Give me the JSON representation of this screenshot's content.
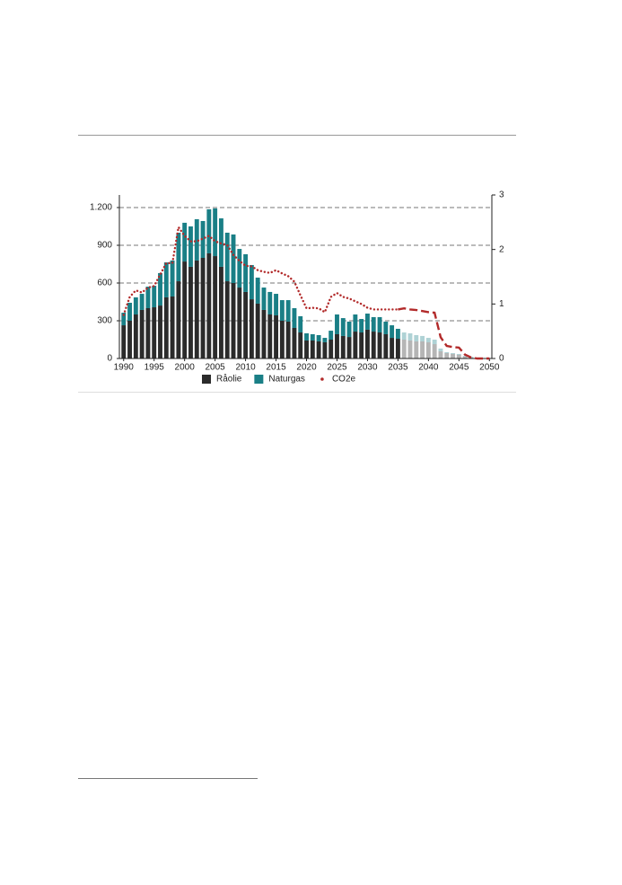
{
  "chart_data": {
    "type": "bar",
    "x": [
      1990,
      1991,
      1992,
      1993,
      1994,
      1995,
      1996,
      1997,
      1998,
      1999,
      2000,
      2001,
      2002,
      2003,
      2004,
      2005,
      2006,
      2007,
      2008,
      2009,
      2010,
      2011,
      2012,
      2013,
      2014,
      2015,
      2016,
      2017,
      2018,
      2019,
      2020,
      2021,
      2022,
      2023,
      2024,
      2025,
      2026,
      2027,
      2028,
      2029,
      2030,
      2031,
      2032,
      2033,
      2034,
      2035,
      2036,
      2037,
      2038,
      2039,
      2040,
      2041,
      2042,
      2043,
      2044,
      2045,
      2046,
      2047,
      2048,
      2049,
      2050
    ],
    "series": [
      {
        "name": "Råolie",
        "color": "#2b2b2b",
        "type": "bar",
        "values": [
          264,
          300,
          350,
          386,
          400,
          407,
          421,
          486,
          493,
          614,
          771,
          729,
          779,
          800,
          836,
          814,
          729,
          614,
          600,
          564,
          529,
          471,
          436,
          386,
          350,
          343,
          300,
          293,
          243,
          207,
          143,
          143,
          136,
          129,
          150,
          193,
          179,
          171,
          214,
          207,
          229,
          214,
          207,
          193,
          164,
          157,
          150,
          143,
          136,
          136,
          129,
          114,
          57,
          43,
          36,
          29,
          14,
          7,
          0,
          0,
          0
        ]
      },
      {
        "name": "Naturgas",
        "color": "#1a7f86",
        "type": "bar",
        "values": [
          100,
          143,
          136,
          128,
          171,
          171,
          258,
          278,
          286,
          386,
          308,
          321,
          328,
          293,
          350,
          379,
          385,
          386,
          386,
          307,
          300,
          272,
          207,
          178,
          179,
          171,
          164,
          171,
          157,
          129,
          57,
          50,
          50,
          35,
          71,
          157,
          142,
          122,
          136,
          107,
          128,
          115,
          122,
          100,
          100,
          79,
          57,
          57,
          50,
          43,
          35,
          36,
          22,
          7,
          7,
          7,
          7,
          7,
          0,
          0,
          0
        ]
      },
      {
        "name": "CO2e",
        "color": "#b22a2a",
        "type": "line",
        "axis": "y2",
        "values": [
          0.8,
          1.13,
          1.25,
          1.21,
          1.3,
          1.33,
          1.54,
          1.75,
          1.75,
          2.41,
          2.25,
          2.15,
          2.15,
          2.2,
          2.25,
          2.15,
          2.11,
          2.08,
          1.9,
          1.79,
          1.7,
          1.69,
          1.62,
          1.59,
          1.57,
          1.62,
          1.56,
          1.51,
          1.41,
          1.16,
          0.92,
          0.93,
          0.92,
          0.85,
          1.13,
          1.2,
          1.13,
          1.1,
          1.05,
          1.0,
          0.93,
          0.9,
          0.9,
          0.9,
          0.9,
          0.9,
          0.92,
          0.9,
          0.89,
          0.87,
          0.85,
          0.84,
          0.39,
          0.23,
          0.21,
          0.2,
          0.07,
          0.02,
          0,
          0,
          0
        ]
      }
    ],
    "projected_from": 2036,
    "xlim": [
      1989.3,
      2050.4
    ],
    "xticks": [
      1990,
      1995,
      2000,
      2005,
      2010,
      2015,
      2020,
      2025,
      2030,
      2035,
      2040,
      2045,
      2050
    ],
    "ylim": [
      0,
      1300
    ],
    "yticks": [
      0,
      300,
      600,
      900,
      {
        "value": 1200,
        "label": "1.200"
      }
    ],
    "y2lim": [
      0,
      3
    ],
    "y2ticks": [
      0,
      1,
      2,
      3
    ],
    "grid": true,
    "legend": "bottom"
  }
}
